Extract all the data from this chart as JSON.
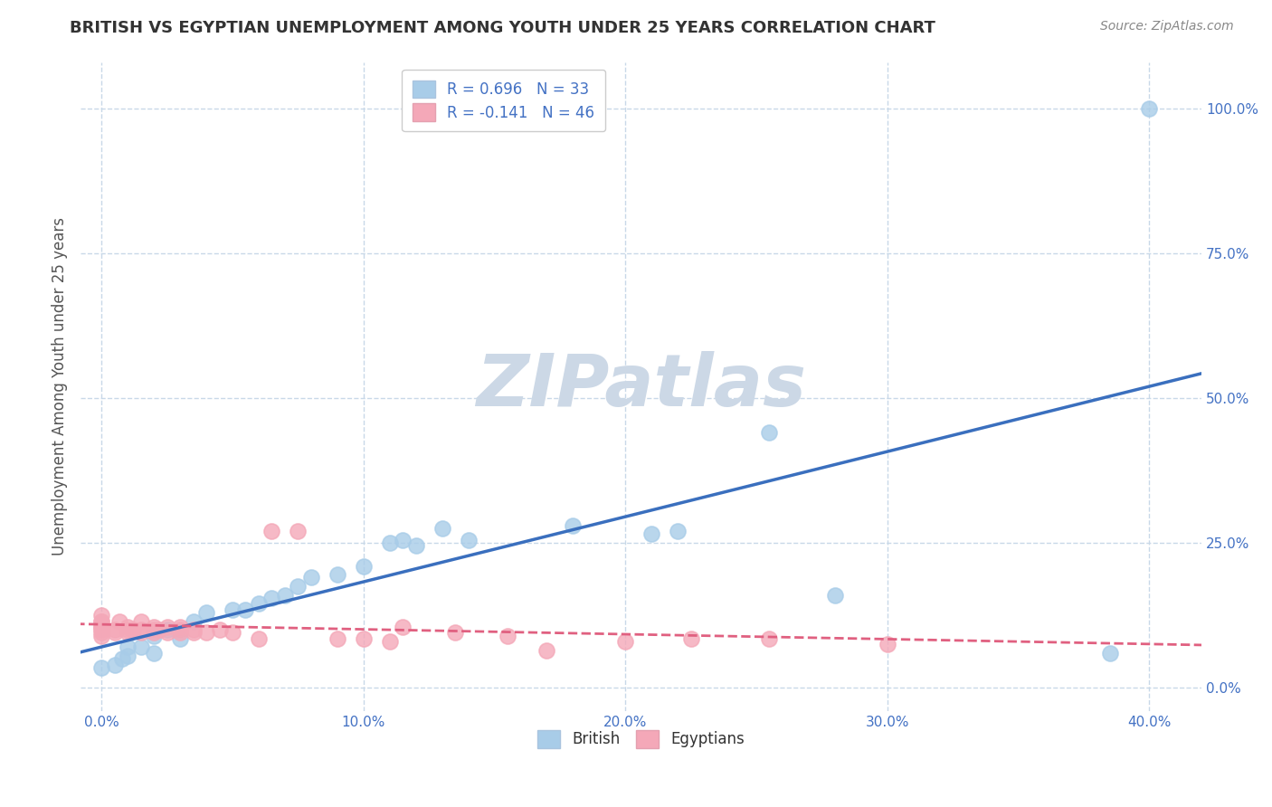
{
  "title": "BRITISH VS EGYPTIAN UNEMPLOYMENT AMONG YOUTH UNDER 25 YEARS CORRELATION CHART",
  "source": "Source: ZipAtlas.com",
  "ylabel": "Unemployment Among Youth under 25 years",
  "xlabel": "",
  "xlim": [
    -0.008,
    0.42
  ],
  "ylim": [
    -0.04,
    1.08
  ],
  "xticks": [
    0.0,
    0.1,
    0.2,
    0.3,
    0.4
  ],
  "xticklabels": [
    "0.0%",
    "10.0%",
    "20.0%",
    "30.0%",
    "40.0%"
  ],
  "yticks": [
    0.0,
    0.25,
    0.5,
    0.75,
    1.0
  ],
  "yticklabels": [
    "0.0%",
    "25.0%",
    "50.0%",
    "75.0%",
    "100.0%"
  ],
  "british_R": 0.696,
  "british_N": 33,
  "egyptian_R": -0.141,
  "egyptian_N": 46,
  "british_color": "#a8cce8",
  "egyptian_color": "#f4a8b8",
  "british_line_color": "#3a6fbe",
  "egyptian_line_color": "#e06080",
  "watermark": "ZIPatlas",
  "watermark_color": "#ccd8e6",
  "background_color": "#ffffff",
  "grid_color": "#c8d8e8",
  "title_color": "#333333",
  "axis_color": "#4472c4",
  "legend_R_color": "#4472c4",
  "british_scatter": [
    [
      0.0,
      0.035
    ],
    [
      0.005,
      0.04
    ],
    [
      0.008,
      0.05
    ],
    [
      0.01,
      0.055
    ],
    [
      0.01,
      0.07
    ],
    [
      0.015,
      0.07
    ],
    [
      0.02,
      0.06
    ],
    [
      0.02,
      0.09
    ],
    [
      0.025,
      0.1
    ],
    [
      0.03,
      0.085
    ],
    [
      0.035,
      0.115
    ],
    [
      0.04,
      0.13
    ],
    [
      0.05,
      0.135
    ],
    [
      0.055,
      0.135
    ],
    [
      0.06,
      0.145
    ],
    [
      0.065,
      0.155
    ],
    [
      0.07,
      0.16
    ],
    [
      0.075,
      0.175
    ],
    [
      0.08,
      0.19
    ],
    [
      0.09,
      0.195
    ],
    [
      0.1,
      0.21
    ],
    [
      0.11,
      0.25
    ],
    [
      0.115,
      0.255
    ],
    [
      0.12,
      0.245
    ],
    [
      0.13,
      0.275
    ],
    [
      0.14,
      0.255
    ],
    [
      0.18,
      0.28
    ],
    [
      0.21,
      0.265
    ],
    [
      0.22,
      0.27
    ],
    [
      0.255,
      0.44
    ],
    [
      0.28,
      0.16
    ],
    [
      0.385,
      0.06
    ],
    [
      0.4,
      1.0
    ]
  ],
  "egyptian_scatter": [
    [
      0.0,
      0.115
    ],
    [
      0.0,
      0.105
    ],
    [
      0.0,
      0.1
    ],
    [
      0.0,
      0.09
    ],
    [
      0.0,
      0.095
    ],
    [
      0.0,
      0.105
    ],
    [
      0.0,
      0.115
    ],
    [
      0.0,
      0.125
    ],
    [
      0.005,
      0.1
    ],
    [
      0.005,
      0.095
    ],
    [
      0.007,
      0.115
    ],
    [
      0.01,
      0.105
    ],
    [
      0.01,
      0.1
    ],
    [
      0.01,
      0.095
    ],
    [
      0.012,
      0.1
    ],
    [
      0.015,
      0.1
    ],
    [
      0.015,
      0.095
    ],
    [
      0.015,
      0.115
    ],
    [
      0.02,
      0.105
    ],
    [
      0.02,
      0.095
    ],
    [
      0.02,
      0.1
    ],
    [
      0.022,
      0.1
    ],
    [
      0.025,
      0.095
    ],
    [
      0.025,
      0.105
    ],
    [
      0.03,
      0.1
    ],
    [
      0.03,
      0.105
    ],
    [
      0.03,
      0.095
    ],
    [
      0.035,
      0.095
    ],
    [
      0.035,
      0.1
    ],
    [
      0.04,
      0.095
    ],
    [
      0.045,
      0.1
    ],
    [
      0.05,
      0.095
    ],
    [
      0.06,
      0.085
    ],
    [
      0.065,
      0.27
    ],
    [
      0.075,
      0.27
    ],
    [
      0.09,
      0.085
    ],
    [
      0.1,
      0.085
    ],
    [
      0.11,
      0.08
    ],
    [
      0.115,
      0.105
    ],
    [
      0.135,
      0.095
    ],
    [
      0.155,
      0.09
    ],
    [
      0.17,
      0.065
    ],
    [
      0.2,
      0.08
    ],
    [
      0.225,
      0.085
    ],
    [
      0.255,
      0.085
    ],
    [
      0.3,
      0.075
    ]
  ]
}
